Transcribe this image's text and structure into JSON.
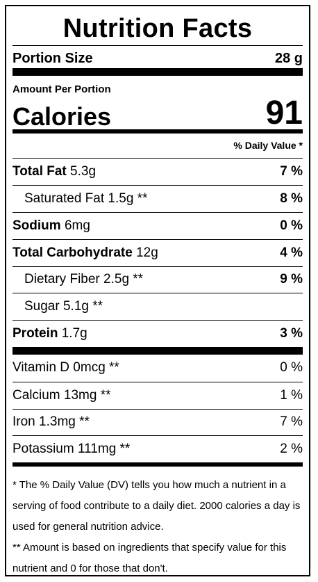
{
  "title": "Nutrition Facts",
  "portion": {
    "label": "Portion Size",
    "value": "28 g"
  },
  "amount_per_portion": "Amount Per Portion",
  "calories": {
    "label": "Calories",
    "value": "91"
  },
  "daily_value_header": "% Daily Value *",
  "nutrients": [
    {
      "name": "Total Fat",
      "amount": "5.3g",
      "pct": "7 %"
    },
    {
      "name": "Saturated Fat",
      "amount": "1.5g **",
      "pct": "8 %"
    },
    {
      "name": "Sodium",
      "amount": "6mg",
      "pct": "0 %"
    },
    {
      "name": "Total Carbohydrate",
      "amount": "12g",
      "pct": "4 %"
    },
    {
      "name": "Dietary Fiber",
      "amount": "2.5g **",
      "pct": "9 %"
    },
    {
      "name": "Sugar",
      "amount": "5.1g **",
      "pct": ""
    },
    {
      "name": "Protein",
      "amount": "1.7g",
      "pct": "3 %"
    }
  ],
  "vitamins": [
    {
      "name": "Vitamin D",
      "amount": "0mcg **",
      "pct": "0 %"
    },
    {
      "name": "Calcium",
      "amount": "13mg **",
      "pct": "1 %"
    },
    {
      "name": "Iron",
      "amount": "1.3mg **",
      "pct": "7 %"
    },
    {
      "name": "Potassium",
      "amount": "111mg **",
      "pct": "2 %"
    }
  ],
  "footnotes": [
    "* The % Daily Value (DV) tells you how much a nutrient in a serving of food contribute to a daily diet. 2000 calories a day is used for general nutrition advice.",
    "** Amount is based on ingredients that specify value for this nutrient and 0 for those that don't."
  ]
}
